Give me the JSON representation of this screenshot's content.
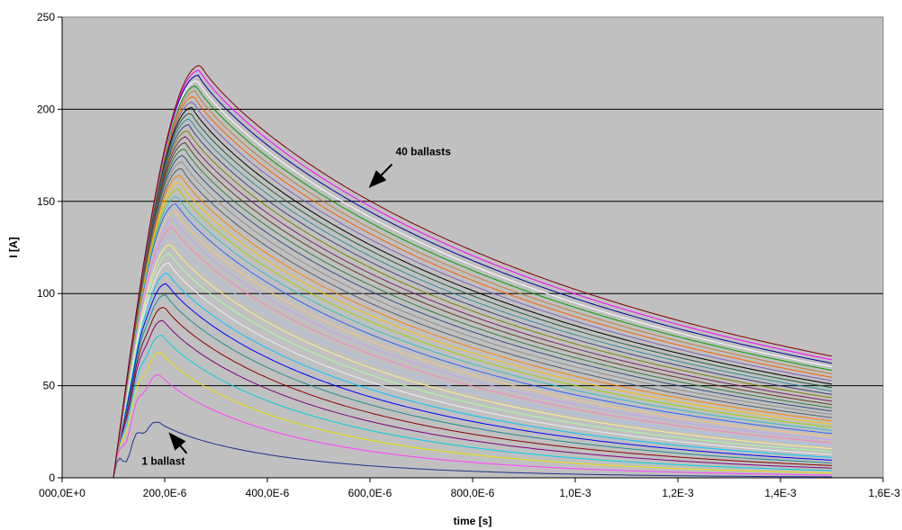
{
  "chart_data": {
    "type": "line",
    "title": "",
    "xlabel": "time [s]",
    "ylabel": "I [A]",
    "xlim": [
      0,
      0.0016
    ],
    "ylim": [
      0,
      250
    ],
    "x_ticks": [
      0,
      0.0002,
      0.0004,
      0.0006,
      0.0008,
      0.001,
      0.0012,
      0.0014,
      0.0016
    ],
    "x_tick_labels": [
      "000,0E+0",
      "200,0E-6",
      "400,0E-6",
      "600,0E-6",
      "800,0E-6",
      "1,0E-3",
      "1,2E-3",
      "1,4E-3",
      "1,6E-3"
    ],
    "y_ticks": [
      0,
      50,
      100,
      150,
      200,
      250
    ],
    "y_tick_labels": [
      "0",
      "50",
      "100",
      "150",
      "200",
      "250"
    ],
    "grid": "horizontal",
    "legend": "none",
    "plot_background": "#c0c0c0",
    "series_count": 40,
    "curve_model": {
      "start_time": 0.0001,
      "end_time": 0.0015,
      "peak_current_first": 30,
      "peak_current_last": 224,
      "peak_time_first": 0.00019,
      "peak_time_last": 0.00027,
      "final_current_first": 0.5,
      "final_current_last": 66
    },
    "series_colors": [
      "#1f2f8f",
      "#ff40ff",
      "#e8e000",
      "#00d0e0",
      "#800080",
      "#8b0000",
      "#1f8f8f",
      "#0000ff",
      "#00c8ff",
      "#f0f0f0",
      "#a0ffa0",
      "#fff080",
      "#a0c0ff",
      "#ff80c0",
      "#c0a0ff",
      "#ffc080",
      "#3060ff",
      "#30c0c0",
      "#a0d000",
      "#ffc000",
      "#ff8000",
      "#506070",
      "#909090",
      "#305080",
      "#308040",
      "#604020",
      "#802060",
      "#808000",
      "#404080",
      "#3090a0",
      "#206040",
      "#000000",
      "#8060c0",
      "#ff6000",
      "#c08040",
      "#00a000",
      "#ffffff",
      "#0000a0",
      "#ff00ff",
      "#800000"
    ],
    "annotations": [
      {
        "text": "40 ballasts",
        "x": 0.0006,
        "y": 158,
        "text_x": 0.00065,
        "text_y": 175
      },
      {
        "text": "1 ballast",
        "x": 0.00021,
        "y": 24,
        "text_x": 0.000155,
        "text_y": 7
      }
    ]
  }
}
